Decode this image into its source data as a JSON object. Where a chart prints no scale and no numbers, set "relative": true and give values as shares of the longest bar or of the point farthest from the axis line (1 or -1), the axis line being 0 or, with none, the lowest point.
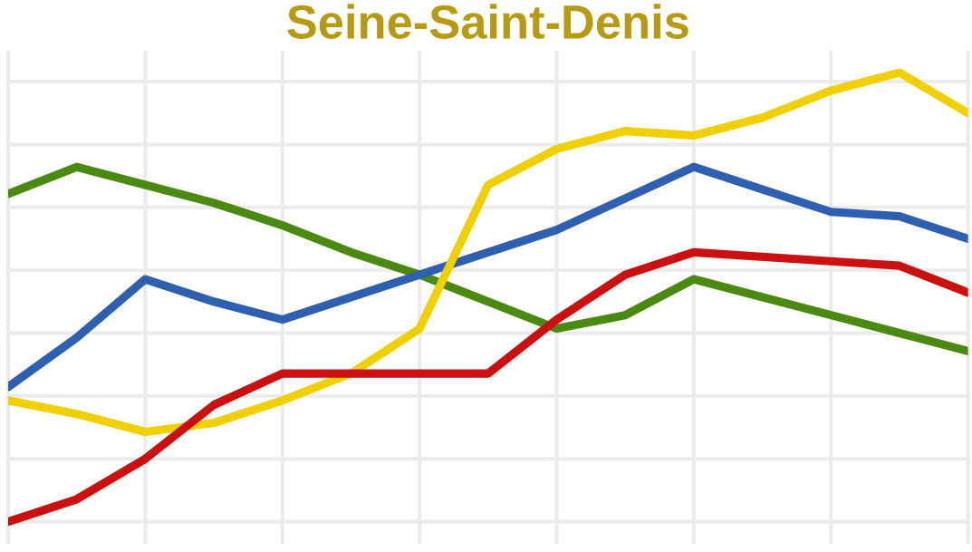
{
  "chart_data": {
    "type": "line",
    "title": "Seine-Saint-Denis",
    "relative": true,
    "grid": true,
    "marker": "none",
    "line_style": "solid",
    "categories": [
      null,
      null,
      null,
      null,
      null,
      null,
      null,
      null,
      null,
      null,
      null,
      null,
      null,
      null,
      null
    ],
    "series": [
      {
        "color": "#4a8a10",
        "values": [
          0.73,
          0.79,
          0.75,
          0.71,
          0.66,
          0.6,
          0.55,
          0.49,
          0.43,
          0.46,
          0.54,
          0.5,
          0.46,
          0.42,
          0.38
        ]
      },
      {
        "color": "#2f5fb0",
        "values": [
          0.3,
          0.41,
          0.54,
          0.49,
          0.45,
          0.5,
          0.55,
          0.6,
          0.65,
          0.72,
          0.79,
          0.74,
          0.69,
          0.68,
          0.63
        ]
      },
      {
        "color": "#f0d000",
        "values": [
          0.27,
          0.24,
          0.2,
          0.22,
          0.27,
          0.33,
          0.43,
          0.75,
          0.83,
          0.87,
          0.86,
          0.9,
          0.96,
          1.0,
          0.91
        ]
      },
      {
        "color": "#cc1010",
        "values": [
          0.0,
          0.05,
          0.14,
          0.26,
          0.33,
          0.33,
          0.33,
          0.33,
          0.45,
          0.55,
          0.6,
          0.59,
          0.58,
          0.57,
          0.51
        ]
      }
    ]
  }
}
